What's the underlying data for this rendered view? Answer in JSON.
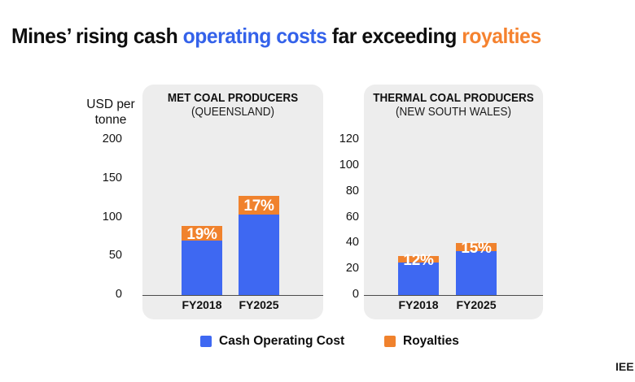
{
  "title": {
    "segments": [
      {
        "text": "Mines’ rising cash ",
        "color": "#0f0f0f"
      },
      {
        "text": "operating costs",
        "color": "#3462ea"
      },
      {
        "text": " far exceeding ",
        "color": "#0f0f0f"
      },
      {
        "text": "royalties",
        "color": "#f5822f"
      }
    ]
  },
  "axis_unit": {
    "line1": "USD per",
    "line2": "tonne"
  },
  "colors": {
    "cash_operating_cost": "#3e68f2",
    "royalties": "#f0822d",
    "panel_background": "#ededed",
    "axis_line": "#4c4c4c"
  },
  "chart_data": [
    {
      "type": "bar",
      "stacked": true,
      "title": "MET COAL PRODUCERS",
      "subtitle": "(QUEENSLAND)",
      "categories": [
        "FY2018",
        "FY2025"
      ],
      "series": [
        {
          "name": "Cash Operating Cost",
          "values": [
            70,
            104
          ]
        },
        {
          "name": "Royalties",
          "values": [
            19,
            24
          ]
        }
      ],
      "bar_labels": [
        "19%",
        "17%"
      ],
      "ylabel": "USD per tonne",
      "ylim": [
        0,
        200
      ],
      "yticks": [
        0,
        50,
        100,
        150,
        200
      ],
      "grid": false,
      "legend_position": "bottom"
    },
    {
      "type": "bar",
      "stacked": true,
      "title": "THERMAL COAL PRODUCERS",
      "subtitle": "(NEW SOUTH WALES)",
      "categories": [
        "FY2018",
        "FY2025"
      ],
      "series": [
        {
          "name": "Cash Operating Cost",
          "values": [
            25,
            34
          ]
        },
        {
          "name": "Royalties",
          "values": [
            5,
            6
          ]
        }
      ],
      "bar_labels": [
        "12%",
        "15%"
      ],
      "ylabel": "USD per tonne",
      "ylim": [
        0,
        120
      ],
      "yticks": [
        0,
        20,
        40,
        60,
        80,
        100,
        120
      ],
      "grid": false,
      "legend_position": "bottom"
    }
  ],
  "legend": [
    {
      "label": "Cash Operating Cost",
      "color": "#3e68f2"
    },
    {
      "label": "Royalties",
      "color": "#f0822d"
    }
  ],
  "footer": {
    "logo_text": "IEE"
  }
}
